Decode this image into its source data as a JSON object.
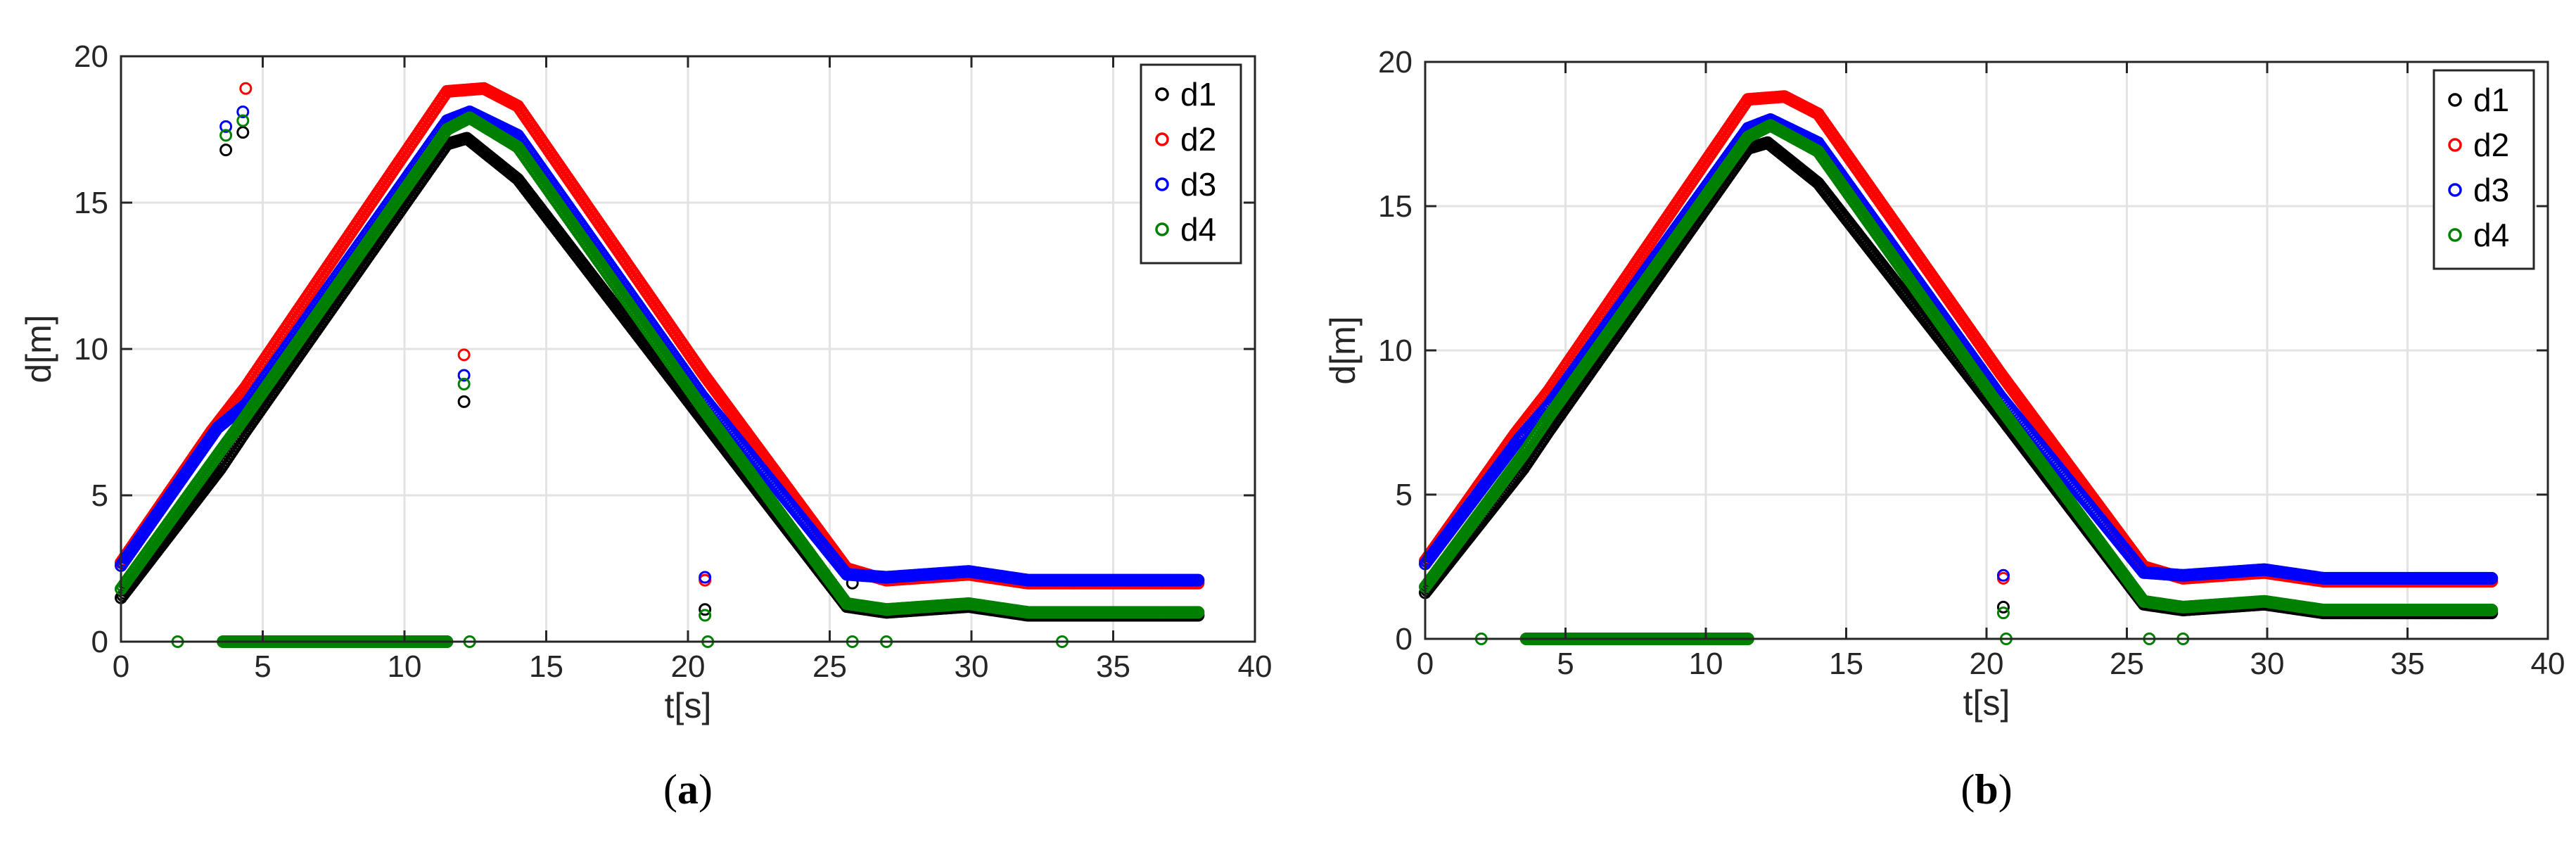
{
  "colors": {
    "d1": "#000000",
    "d2": "#ff0000",
    "d3": "#0000ff",
    "d4": "#008000",
    "grid": "#e3e3e3",
    "axis": "#262626"
  },
  "chart_data": [
    {
      "type": "scatter",
      "panel": "a",
      "caption": {
        "open": "(",
        "letter": "a",
        "close": ")"
      },
      "xlabel": "t[s]",
      "ylabel": "d[m]",
      "xlim": [
        0,
        40
      ],
      "ylim": [
        0,
        20
      ],
      "xticks": [
        0,
        5,
        10,
        15,
        20,
        25,
        30,
        35,
        40
      ],
      "xtick_labels": [
        "0",
        "5",
        "10",
        "15",
        "20",
        "25",
        "30",
        "35",
        "40"
      ],
      "yticks": [
        0,
        5,
        10,
        15,
        20
      ],
      "ytick_labels": [
        "0",
        "5",
        "10",
        "15",
        "20"
      ],
      "grid": true,
      "legend_position": "top-right",
      "series": [
        {
          "name": "d1",
          "color_key": "d1",
          "segments": [
            {
              "x": [
                0.0,
                3.5,
                4.4,
                11.5,
                12.2,
                14.0,
                20.5,
                25.6,
                27.0,
                29.9,
                32.0,
                38.0
              ],
              "y": [
                1.5,
                5.9,
                7.2,
                17.0,
                17.2,
                15.8,
                7.6,
                1.2,
                1.0,
                1.2,
                0.9,
                0.9
              ]
            }
          ],
          "points": [
            {
              "x": 3.7,
              "y": 16.8
            },
            {
              "x": 4.3,
              "y": 17.4
            },
            {
              "x": 12.1,
              "y": 8.2
            },
            {
              "x": 20.6,
              "y": 1.1
            },
            {
              "x": 25.8,
              "y": 2.0
            }
          ]
        },
        {
          "name": "d2",
          "color_key": "d2",
          "segments": [
            {
              "x": [
                0.0,
                3.2,
                4.4,
                11.5,
                12.8,
                14.0,
                20.5,
                25.6,
                27.0,
                29.9,
                32.0,
                38.0
              ],
              "y": [
                2.7,
                7.2,
                8.7,
                18.8,
                18.9,
                18.3,
                9.2,
                2.5,
                2.1,
                2.3,
                2.0,
                2.0
              ]
            }
          ],
          "points": [
            {
              "x": 4.4,
              "y": 18.9
            },
            {
              "x": 12.1,
              "y": 9.8
            },
            {
              "x": 20.6,
              "y": 2.1
            }
          ]
        },
        {
          "name": "d3",
          "color_key": "d3",
          "segments": [
            {
              "x": [
                0.0,
                3.4,
                4.4,
                11.5,
                12.3,
                14.0,
                20.5,
                25.6,
                27.0,
                29.9,
                32.0,
                38.0
              ],
              "y": [
                2.6,
                7.3,
                8.1,
                17.8,
                18.1,
                17.3,
                8.4,
                2.3,
                2.2,
                2.4,
                2.1,
                2.1
              ]
            }
          ],
          "points": [
            {
              "x": 3.7,
              "y": 17.6
            },
            {
              "x": 4.3,
              "y": 18.1
            },
            {
              "x": 12.1,
              "y": 9.1
            },
            {
              "x": 20.6,
              "y": 2.2
            }
          ]
        },
        {
          "name": "d4",
          "color_key": "d4",
          "segments": [
            {
              "x": [
                0.0,
                3.5,
                4.4,
                11.5,
                12.3,
                14.0,
                20.5,
                25.6,
                27.0,
                29.9,
                32.0,
                38.0
              ],
              "y": [
                1.8,
                6.5,
                7.7,
                17.5,
                17.9,
                16.9,
                8.0,
                1.3,
                1.1,
                1.3,
                1.0,
                1.0
              ]
            },
            {
              "x": [
                3.6,
                11.5
              ],
              "y": [
                0.0,
                0.0
              ]
            }
          ],
          "points": [
            {
              "x": 3.7,
              "y": 17.3
            },
            {
              "x": 4.3,
              "y": 17.8
            },
            {
              "x": 12.1,
              "y": 8.8
            },
            {
              "x": 20.6,
              "y": 0.9
            },
            {
              "x": 20.7,
              "y": 0.0
            },
            {
              "x": 12.3,
              "y": 0.0
            },
            {
              "x": 2.0,
              "y": 0.0
            },
            {
              "x": 25.8,
              "y": 0.0
            },
            {
              "x": 27.0,
              "y": 0.0
            },
            {
              "x": 33.2,
              "y": 0.0
            }
          ]
        }
      ]
    },
    {
      "type": "scatter",
      "panel": "b",
      "caption": {
        "open": "(",
        "letter": "b",
        "close": ")"
      },
      "xlabel": "t[s]",
      "ylabel": "d[m]",
      "xlim": [
        0,
        40
      ],
      "ylim": [
        0,
        20
      ],
      "xticks": [
        0,
        5,
        10,
        15,
        20,
        25,
        30,
        35,
        40
      ],
      "xtick_labels": [
        "0",
        "5",
        "10",
        "15",
        "20",
        "25",
        "30",
        "35",
        "40"
      ],
      "yticks": [
        0,
        5,
        10,
        15,
        20
      ],
      "ytick_labels": [
        "0",
        "5",
        "10",
        "15",
        "20"
      ],
      "grid": true,
      "legend_position": "top-right",
      "series": [
        {
          "name": "d1",
          "color_key": "d1",
          "segments": [
            {
              "x": [
                0.0,
                3.5,
                4.4,
                11.5,
                12.2,
                14.0,
                20.5,
                25.6,
                27.0,
                29.9,
                32.0,
                38.0
              ],
              "y": [
                1.6,
                5.9,
                7.2,
                17.0,
                17.2,
                15.8,
                7.7,
                1.2,
                1.0,
                1.2,
                0.9,
                0.9
              ]
            }
          ],
          "points": [
            {
              "x": 20.6,
              "y": 1.1
            }
          ]
        },
        {
          "name": "d2",
          "color_key": "d2",
          "segments": [
            {
              "x": [
                0.0,
                3.2,
                4.4,
                11.5,
                12.8,
                14.0,
                20.5,
                25.6,
                27.0,
                29.9,
                32.0,
                38.0
              ],
              "y": [
                2.7,
                7.1,
                8.6,
                18.7,
                18.8,
                18.2,
                9.2,
                2.5,
                2.1,
                2.3,
                2.0,
                2.0
              ]
            }
          ],
          "points": [
            {
              "x": 20.6,
              "y": 2.1
            }
          ]
        },
        {
          "name": "d3",
          "color_key": "d3",
          "segments": [
            {
              "x": [
                0.0,
                3.4,
                4.4,
                11.5,
                12.3,
                14.0,
                20.5,
                25.6,
                27.0,
                29.9,
                32.0,
                38.0
              ],
              "y": [
                2.6,
                7.0,
                8.1,
                17.7,
                18.0,
                17.2,
                8.4,
                2.3,
                2.2,
                2.4,
                2.1,
                2.1
              ]
            }
          ],
          "points": [
            {
              "x": 20.6,
              "y": 2.2
            }
          ]
        },
        {
          "name": "d4",
          "color_key": "d4",
          "segments": [
            {
              "x": [
                0.0,
                3.5,
                4.4,
                11.5,
                12.3,
                14.0,
                20.5,
                25.6,
                27.0,
                29.9,
                32.0,
                38.0
              ],
              "y": [
                1.8,
                6.4,
                7.7,
                17.4,
                17.8,
                16.9,
                8.0,
                1.3,
                1.1,
                1.3,
                1.0,
                1.0
              ]
            },
            {
              "x": [
                3.6,
                11.5
              ],
              "y": [
                0.0,
                0.0
              ]
            }
          ],
          "points": [
            {
              "x": 20.6,
              "y": 0.9
            },
            {
              "x": 20.7,
              "y": 0.0
            },
            {
              "x": 2.0,
              "y": 0.0
            },
            {
              "x": 25.8,
              "y": 0.0
            },
            {
              "x": 27.0,
              "y": 0.0
            }
          ]
        }
      ]
    }
  ]
}
